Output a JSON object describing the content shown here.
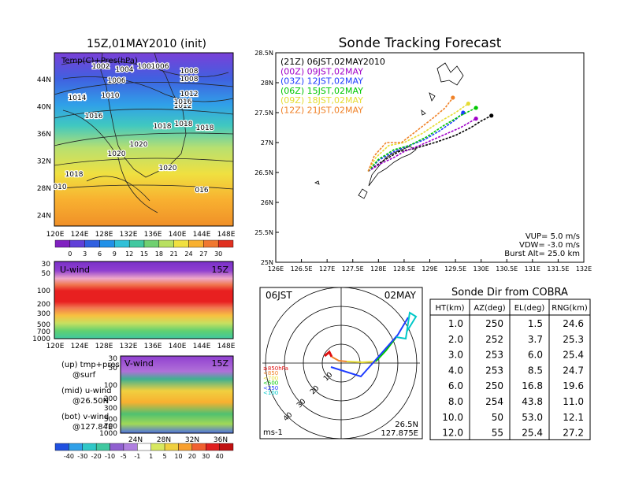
{
  "left": {
    "title": "15Z,01MAY2010 (init)",
    "map": {
      "label": "Temp(C)+Pres(hPa)",
      "lat_ticks": [
        "44N",
        "40N",
        "36N",
        "32N",
        "28N",
        "24N"
      ],
      "lon_ticks": [
        "120E",
        "124E",
        "128E",
        "132E",
        "136E",
        "140E",
        "144E",
        "148E"
      ],
      "isobars": [
        "1002",
        "1004",
        "1004",
        "1006",
        "1008",
        "1006",
        "1008",
        "1010",
        "1012",
        "1010",
        "1012",
        "1014",
        "1016",
        "1016",
        "1018",
        "1018",
        "1018",
        "1020",
        "1020",
        "1020",
        "1018",
        "016",
        "010"
      ],
      "colorbar": [
        "0",
        "3",
        "6",
        "9",
        "12",
        "15",
        "18",
        "21",
        "24",
        "27",
        "30"
      ]
    },
    "uwind": {
      "label": "U-wind",
      "time": "15Z",
      "p_ticks": [
        "30",
        "50",
        "100",
        "200",
        "300",
        "500",
        "700",
        "1000"
      ],
      "lon_ticks": [
        "120E",
        "124E",
        "128E",
        "132E",
        "136E",
        "140E",
        "144E",
        "148E"
      ]
    },
    "vwind": {
      "label": "V-wind",
      "time": "15Z",
      "p_ticks": [
        "30",
        "50",
        "100",
        "200",
        "300",
        "500",
        "700",
        "1000"
      ],
      "lat_ticks": [
        "24N",
        "28N",
        "32N",
        "36N"
      ],
      "colorbar": [
        "-40",
        "-30",
        "-20",
        "-10",
        "-5",
        "-1",
        "1",
        "5",
        "10",
        "20",
        "30",
        "40"
      ]
    },
    "notes": [
      {
        "head": "(up) tmp+pres",
        "sub": "@surf"
      },
      {
        "head": "(mid) u-wind",
        "sub": "@26.50N"
      },
      {
        "head": "(bot) v-wind",
        "sub": "@127.84E"
      }
    ]
  },
  "tracking": {
    "title": "Sonde Tracking Forecast",
    "chart_data": {
      "type": "line",
      "xlabel": "",
      "ylabel": "",
      "xlim": [
        126.0,
        132.0
      ],
      "ylim": [
        25.0,
        28.5
      ],
      "x_ticks": [
        "126E",
        "126.5E",
        "127E",
        "127.5E",
        "128E",
        "128.5E",
        "129E",
        "129.5E",
        "130E",
        "130.5E",
        "131E",
        "131.5E",
        "132E"
      ],
      "y_ticks": [
        "25N",
        "25.5N",
        "26N",
        "26.5N",
        "27N",
        "27.5N",
        "28N",
        "28.5N"
      ],
      "series": [
        {
          "name": "(21Z) 06JST,02MAY2010",
          "color": "#000000",
          "x": [
            127.8,
            128.1,
            128.4,
            128.7,
            129.1,
            129.5,
            129.8,
            130.0,
            130.2
          ],
          "y": [
            26.52,
            26.7,
            26.85,
            26.9,
            27.0,
            27.12,
            27.25,
            27.36,
            27.45
          ]
        },
        {
          "name": "(00Z) 09JST,02MAY",
          "color": "#a000c8",
          "x": [
            127.8,
            128.05,
            128.3,
            128.5,
            128.8,
            129.2,
            129.6,
            129.9
          ],
          "y": [
            26.52,
            26.65,
            26.75,
            26.85,
            26.95,
            27.1,
            27.25,
            27.4
          ]
        },
        {
          "name": "(03Z) 12JST,02MAY",
          "color": "#1e3cff",
          "x": [
            127.8,
            128.0,
            128.3,
            128.6,
            128.9,
            129.2,
            129.5,
            129.65
          ],
          "y": [
            26.52,
            26.7,
            26.85,
            26.95,
            27.05,
            27.2,
            27.38,
            27.5
          ]
        },
        {
          "name": "(06Z) 15JST,02MAY",
          "color": "#00c800",
          "x": [
            127.8,
            128.0,
            128.3,
            128.6,
            128.95,
            129.3,
            129.6,
            129.9
          ],
          "y": [
            26.52,
            26.72,
            26.88,
            26.95,
            27.1,
            27.3,
            27.45,
            27.58
          ]
        },
        {
          "name": "(09Z) 18JST,02MAY",
          "color": "#e6dc32",
          "x": [
            127.8,
            127.95,
            128.2,
            128.5,
            128.85,
            129.2,
            129.5,
            129.75
          ],
          "y": [
            26.52,
            26.75,
            26.95,
            27.0,
            27.15,
            27.35,
            27.5,
            27.65
          ]
        },
        {
          "name": "(12Z) 21JST,02MAY",
          "color": "#f08228",
          "x": [
            127.8,
            127.92,
            128.15,
            128.45,
            128.75,
            129.05,
            129.3,
            129.45
          ],
          "y": [
            26.52,
            26.78,
            27.0,
            27.0,
            27.2,
            27.4,
            27.58,
            27.75
          ]
        }
      ],
      "annotations": [
        "VUP= 5.0 m/s",
        "VDW= -3.0 m/s",
        "Burst Alt= 25.0 km"
      ]
    }
  },
  "polar": {
    "time": "06JST",
    "date": "02MAY",
    "ring_labels": [
      "10",
      "20",
      "30",
      "40"
    ],
    "legend": [
      "≥850hPa",
      "<850",
      "<700",
      "<500",
      "<250",
      "<100"
    ],
    "legend_colors": [
      "#e01010",
      "#f08228",
      "#e6dc32",
      "#00c800",
      "#1e3cff",
      "#00c8c8"
    ],
    "unit": "ms-1",
    "lat": "26.5N",
    "lon": "127.875E"
  },
  "table": {
    "title": "Sonde Dir from COBRA",
    "headers": [
      "HT(km)",
      "AZ(deg)",
      "EL(deg)",
      "RNG(km)"
    ],
    "rows": [
      [
        "1.0",
        "250",
        "1.5",
        "24.6"
      ],
      [
        "2.0",
        "252",
        "3.7",
        "25.3"
      ],
      [
        "3.0",
        "253",
        "6.0",
        "25.4"
      ],
      [
        "4.0",
        "253",
        "8.5",
        "24.7"
      ],
      [
        "6.0",
        "250",
        "16.8",
        "19.6"
      ],
      [
        "8.0",
        "254",
        "43.8",
        "11.0"
      ],
      [
        "10.0",
        "50",
        "53.0",
        "12.1"
      ],
      [
        "12.0",
        "55",
        "25.4",
        "27.2"
      ]
    ]
  }
}
